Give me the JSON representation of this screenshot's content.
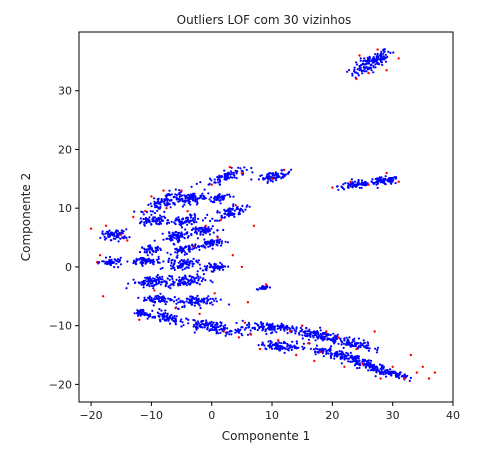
{
  "chart_data": {
    "type": "scatter",
    "title": "Outliers LOF com 30 vizinhos",
    "xlabel": "Componente 1",
    "ylabel": "Componente 2",
    "xlim": [
      -22,
      40
    ],
    "ylim": [
      -23,
      40
    ],
    "x_ticks": [
      -20,
      -10,
      0,
      10,
      20,
      30,
      40
    ],
    "y_ticks": [
      -20,
      -10,
      0,
      10,
      20,
      30
    ],
    "grid": false,
    "legend": "none",
    "series": [
      {
        "role": "inliers",
        "color": "#0000ff",
        "clusters": [
          {
            "cx": 26.5,
            "cy": 34.8,
            "sx": 3.4,
            "sy": 1.1,
            "angle": 30,
            "n": 140
          },
          {
            "cx": 2.5,
            "cy": 15.5,
            "sx": 2.8,
            "sy": 0.8,
            "angle": 20,
            "n": 90
          },
          {
            "cx": 10.5,
            "cy": 15.5,
            "sx": 2.5,
            "sy": 0.6,
            "angle": 10,
            "n": 70
          },
          {
            "cx": 24.0,
            "cy": 14.0,
            "sx": 2.8,
            "sy": 0.6,
            "angle": 5,
            "n": 70
          },
          {
            "cx": 28.5,
            "cy": 14.6,
            "sx": 2.4,
            "sy": 0.6,
            "angle": 5,
            "n": 70
          },
          {
            "cx": -7.5,
            "cy": 11.3,
            "sx": 3.6,
            "sy": 1.0,
            "angle": 25,
            "n": 110
          },
          {
            "cx": -3.5,
            "cy": 11.5,
            "sx": 2.4,
            "sy": 0.9,
            "angle": 15,
            "n": 80
          },
          {
            "cx": 1.5,
            "cy": 11.8,
            "sx": 1.8,
            "sy": 0.6,
            "angle": 10,
            "n": 50
          },
          {
            "cx": 3.0,
            "cy": 9.3,
            "sx": 2.6,
            "sy": 0.9,
            "angle": 15,
            "n": 80
          },
          {
            "cx": -10.0,
            "cy": 7.8,
            "sx": 1.8,
            "sy": 0.7,
            "angle": 10,
            "n": 60
          },
          {
            "cx": -4.5,
            "cy": 7.8,
            "sx": 2.4,
            "sy": 0.8,
            "angle": 10,
            "n": 70
          },
          {
            "cx": -16.0,
            "cy": 5.5,
            "sx": 2.0,
            "sy": 0.8,
            "angle": 0,
            "n": 70
          },
          {
            "cx": -6.0,
            "cy": 5.2,
            "sx": 2.2,
            "sy": 0.8,
            "angle": 15,
            "n": 70
          },
          {
            "cx": -1.0,
            "cy": 6.2,
            "sx": 2.0,
            "sy": 0.7,
            "angle": 10,
            "n": 60
          },
          {
            "cx": -10.0,
            "cy": 3.0,
            "sx": 1.6,
            "sy": 0.5,
            "angle": 0,
            "n": 40
          },
          {
            "cx": -4.5,
            "cy": 3.0,
            "sx": 2.2,
            "sy": 0.7,
            "angle": 10,
            "n": 60
          },
          {
            "cx": 0.0,
            "cy": 4.0,
            "sx": 1.8,
            "sy": 0.7,
            "angle": 10,
            "n": 50
          },
          {
            "cx": -16.5,
            "cy": 0.8,
            "sx": 1.6,
            "sy": 0.6,
            "angle": 0,
            "n": 50
          },
          {
            "cx": -11.0,
            "cy": 1.0,
            "sx": 2.4,
            "sy": 0.7,
            "angle": 0,
            "n": 70
          },
          {
            "cx": -5.0,
            "cy": 0.5,
            "sx": 2.4,
            "sy": 0.8,
            "angle": 5,
            "n": 70
          },
          {
            "cx": -10.0,
            "cy": -2.5,
            "sx": 3.0,
            "sy": 0.9,
            "angle": 5,
            "n": 90
          },
          {
            "cx": -4.5,
            "cy": -2.5,
            "sx": 3.0,
            "sy": 0.9,
            "angle": 5,
            "n": 90
          },
          {
            "cx": 0.5,
            "cy": 0.0,
            "sx": 1.8,
            "sy": 0.6,
            "angle": 5,
            "n": 50
          },
          {
            "cx": -9.0,
            "cy": -5.5,
            "sx": 2.2,
            "sy": 0.8,
            "angle": 0,
            "n": 60
          },
          {
            "cx": -2.5,
            "cy": -5.8,
            "sx": 3.4,
            "sy": 0.9,
            "angle": 5,
            "n": 100
          },
          {
            "cx": -11.0,
            "cy": -8.0,
            "sx": 1.8,
            "sy": 0.6,
            "angle": -20,
            "n": 50
          },
          {
            "cx": -7.5,
            "cy": -8.5,
            "sx": 2.0,
            "sy": 0.7,
            "angle": -20,
            "n": 60
          },
          {
            "cx": 8.5,
            "cy": -3.5,
            "sx": 1.0,
            "sy": 0.3,
            "angle": 0,
            "n": 25
          },
          {
            "cx": 0.0,
            "cy": -10.2,
            "sx": 4.5,
            "sy": 0.9,
            "angle": -10,
            "n": 130
          },
          {
            "cx": 9.5,
            "cy": -10.3,
            "sx": 4.0,
            "sy": 0.7,
            "angle": 0,
            "n": 110
          },
          {
            "cx": 17.0,
            "cy": -11.5,
            "sx": 4.0,
            "sy": 0.8,
            "angle": -8,
            "n": 110
          },
          {
            "cx": 23.0,
            "cy": -13.0,
            "sx": 3.5,
            "sy": 0.8,
            "angle": -10,
            "n": 100
          },
          {
            "cx": 12.0,
            "cy": -13.5,
            "sx": 3.5,
            "sy": 0.7,
            "angle": -5,
            "n": 90
          },
          {
            "cx": 20.5,
            "cy": -14.8,
            "sx": 4.2,
            "sy": 0.8,
            "angle": -15,
            "n": 120
          },
          {
            "cx": 26.5,
            "cy": -17.0,
            "sx": 3.5,
            "sy": 0.8,
            "angle": -20,
            "n": 100
          },
          {
            "cx": 30.5,
            "cy": -18.3,
            "sx": 2.0,
            "sy": 0.6,
            "angle": -15,
            "n": 60
          }
        ]
      },
      {
        "role": "outliers",
        "color": "#ff0000",
        "points": [
          [
            -20,
            6.5
          ],
          [
            -19,
            0.8
          ],
          [
            -18.5,
            2
          ],
          [
            -18,
            -5
          ],
          [
            -17.5,
            7
          ],
          [
            -15,
            5.5
          ],
          [
            -14,
            4.5
          ],
          [
            -13,
            8.5
          ],
          [
            -12,
            -9
          ],
          [
            -11,
            9.5
          ],
          [
            -10,
            12
          ],
          [
            -9.5,
            -4
          ],
          [
            -8,
            13
          ],
          [
            -7.5,
            10
          ],
          [
            -6,
            -7
          ],
          [
            -5,
            13
          ],
          [
            -4,
            9.5
          ],
          [
            -3,
            3.5
          ],
          [
            -2,
            -8
          ],
          [
            -1,
            7
          ],
          [
            0,
            14
          ],
          [
            0.5,
            -4.5
          ],
          [
            1,
            5
          ],
          [
            1.5,
            8
          ],
          [
            2,
            -11
          ],
          [
            3,
            17
          ],
          [
            3.5,
            2
          ],
          [
            4,
            10.5
          ],
          [
            4.5,
            -12
          ],
          [
            5,
            16
          ],
          [
            5,
            0
          ],
          [
            5.5,
            -9.5
          ],
          [
            6,
            -6
          ],
          [
            6.5,
            -11.5
          ],
          [
            7,
            7
          ],
          [
            8,
            -14
          ],
          [
            9,
            -3
          ],
          [
            10,
            15
          ],
          [
            11,
            -12.5
          ],
          [
            12,
            16.5
          ],
          [
            13,
            -11
          ],
          [
            14,
            -15
          ],
          [
            15,
            -10
          ],
          [
            16,
            -13
          ],
          [
            17,
            -16
          ],
          [
            18,
            -14.5
          ],
          [
            19,
            -11
          ],
          [
            20,
            13.5
          ],
          [
            21,
            -12
          ],
          [
            22,
            -17
          ],
          [
            23,
            14.5
          ],
          [
            24,
            32
          ],
          [
            24,
            -14
          ],
          [
            25,
            -16.5
          ],
          [
            26,
            14
          ],
          [
            27,
            -11
          ],
          [
            27.5,
            37
          ],
          [
            28,
            -19
          ],
          [
            29,
            16
          ],
          [
            29,
            33.5
          ],
          [
            30,
            -17
          ],
          [
            31,
            14.5
          ],
          [
            31,
            35.5
          ],
          [
            32,
            -19
          ],
          [
            33,
            -15
          ],
          [
            34,
            -18
          ],
          [
            35,
            -17
          ],
          [
            36,
            -19
          ],
          [
            37,
            -18
          ],
          [
            24.5,
            36
          ],
          [
            26,
            33
          ]
        ]
      }
    ]
  }
}
